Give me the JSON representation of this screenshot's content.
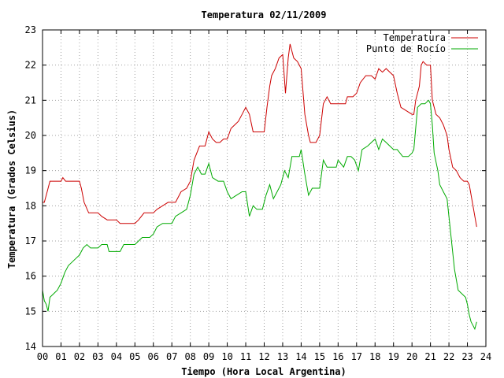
{
  "chart_data": {
    "type": "line",
    "title": "Temperatura 02/11/2009",
    "xlabel": "Tiempo (Hora Local Argentina)",
    "ylabel": "Temperatura (Grados Celsius)",
    "xlim": [
      0,
      24
    ],
    "ylim": [
      14,
      23
    ],
    "xticks": [
      "00",
      "01",
      "02",
      "03",
      "04",
      "05",
      "06",
      "07",
      "08",
      "09",
      "10",
      "11",
      "12",
      "13",
      "14",
      "15",
      "16",
      "17",
      "18",
      "19",
      "20",
      "21",
      "22",
      "23",
      "24"
    ],
    "yticks": [
      14,
      15,
      16,
      17,
      18,
      19,
      20,
      21,
      22,
      23
    ],
    "grid": true,
    "legend_position": "top-right",
    "series": [
      {
        "name": "Temperatura",
        "color": "#cc0000",
        "points": [
          [
            0.0,
            18.1
          ],
          [
            0.1,
            18.1
          ],
          [
            0.25,
            18.4
          ],
          [
            0.4,
            18.7
          ],
          [
            0.7,
            18.7
          ],
          [
            1.0,
            18.7
          ],
          [
            1.1,
            18.8
          ],
          [
            1.25,
            18.7
          ],
          [
            1.6,
            18.7
          ],
          [
            2.0,
            18.7
          ],
          [
            2.1,
            18.5
          ],
          [
            2.25,
            18.1
          ],
          [
            2.5,
            17.8
          ],
          [
            2.8,
            17.8
          ],
          [
            3.0,
            17.8
          ],
          [
            3.2,
            17.7
          ],
          [
            3.5,
            17.6
          ],
          [
            3.8,
            17.6
          ],
          [
            4.0,
            17.6
          ],
          [
            4.2,
            17.5
          ],
          [
            4.6,
            17.5
          ],
          [
            5.0,
            17.5
          ],
          [
            5.2,
            17.6
          ],
          [
            5.5,
            17.8
          ],
          [
            5.8,
            17.8
          ],
          [
            6.0,
            17.8
          ],
          [
            6.2,
            17.9
          ],
          [
            6.5,
            18.0
          ],
          [
            6.8,
            18.1
          ],
          [
            7.0,
            18.1
          ],
          [
            7.2,
            18.1
          ],
          [
            7.5,
            18.4
          ],
          [
            7.8,
            18.5
          ],
          [
            8.0,
            18.7
          ],
          [
            8.2,
            19.3
          ],
          [
            8.5,
            19.7
          ],
          [
            8.8,
            19.7
          ],
          [
            9.0,
            20.1
          ],
          [
            9.2,
            19.9
          ],
          [
            9.4,
            19.8
          ],
          [
            9.6,
            19.8
          ],
          [
            9.8,
            19.9
          ],
          [
            10.0,
            19.9
          ],
          [
            10.2,
            20.2
          ],
          [
            10.4,
            20.3
          ],
          [
            10.6,
            20.4
          ],
          [
            10.8,
            20.6
          ],
          [
            11.0,
            20.8
          ],
          [
            11.2,
            20.6
          ],
          [
            11.4,
            20.1
          ],
          [
            11.7,
            20.1
          ],
          [
            12.0,
            20.1
          ],
          [
            12.15,
            20.8
          ],
          [
            12.3,
            21.4
          ],
          [
            12.4,
            21.7
          ],
          [
            12.6,
            21.9
          ],
          [
            12.8,
            22.2
          ],
          [
            13.0,
            22.3
          ],
          [
            13.15,
            21.2
          ],
          [
            13.3,
            22.2
          ],
          [
            13.4,
            22.6
          ],
          [
            13.6,
            22.2
          ],
          [
            13.8,
            22.1
          ],
          [
            14.0,
            21.9
          ],
          [
            14.2,
            20.6
          ],
          [
            14.4,
            20.0
          ],
          [
            14.5,
            19.8
          ],
          [
            14.8,
            19.8
          ],
          [
            15.0,
            20.0
          ],
          [
            15.2,
            20.9
          ],
          [
            15.4,
            21.1
          ],
          [
            15.6,
            20.9
          ],
          [
            16.0,
            20.9
          ],
          [
            16.4,
            20.9
          ],
          [
            16.5,
            21.1
          ],
          [
            16.8,
            21.1
          ],
          [
            17.0,
            21.2
          ],
          [
            17.2,
            21.5
          ],
          [
            17.5,
            21.7
          ],
          [
            17.8,
            21.7
          ],
          [
            18.0,
            21.6
          ],
          [
            18.2,
            21.9
          ],
          [
            18.4,
            21.8
          ],
          [
            18.6,
            21.9
          ],
          [
            18.8,
            21.8
          ],
          [
            19.0,
            21.7
          ],
          [
            19.2,
            21.2
          ],
          [
            19.4,
            20.8
          ],
          [
            19.7,
            20.7
          ],
          [
            20.0,
            20.6
          ],
          [
            20.1,
            20.6
          ],
          [
            20.2,
            21.0
          ],
          [
            20.4,
            21.4
          ],
          [
            20.5,
            22.0
          ],
          [
            20.6,
            22.1
          ],
          [
            20.8,
            22.0
          ],
          [
            21.0,
            22.0
          ],
          [
            21.1,
            21.0
          ],
          [
            21.3,
            20.6
          ],
          [
            21.5,
            20.5
          ],
          [
            21.7,
            20.3
          ],
          [
            21.9,
            20.0
          ],
          [
            22.0,
            19.6
          ],
          [
            22.2,
            19.1
          ],
          [
            22.4,
            19.0
          ],
          [
            22.6,
            18.8
          ],
          [
            22.8,
            18.7
          ],
          [
            23.0,
            18.7
          ],
          [
            23.1,
            18.6
          ],
          [
            23.3,
            18.0
          ],
          [
            23.5,
            17.4
          ]
        ]
      },
      {
        "name": "Punto de Rocío",
        "color": "#00aa00",
        "points": [
          [
            0.0,
            15.6
          ],
          [
            0.1,
            15.3
          ],
          [
            0.2,
            15.2
          ],
          [
            0.3,
            15.0
          ],
          [
            0.4,
            15.4
          ],
          [
            0.6,
            15.5
          ],
          [
            0.8,
            15.6
          ],
          [
            1.0,
            15.8
          ],
          [
            1.2,
            16.1
          ],
          [
            1.4,
            16.3
          ],
          [
            1.6,
            16.4
          ],
          [
            1.8,
            16.5
          ],
          [
            2.0,
            16.6
          ],
          [
            2.2,
            16.8
          ],
          [
            2.4,
            16.9
          ],
          [
            2.6,
            16.8
          ],
          [
            3.0,
            16.8
          ],
          [
            3.2,
            16.9
          ],
          [
            3.5,
            16.9
          ],
          [
            3.6,
            16.7
          ],
          [
            4.0,
            16.7
          ],
          [
            4.2,
            16.7
          ],
          [
            4.4,
            16.9
          ],
          [
            4.8,
            16.9
          ],
          [
            5.0,
            16.9
          ],
          [
            5.2,
            17.0
          ],
          [
            5.4,
            17.1
          ],
          [
            5.8,
            17.1
          ],
          [
            6.0,
            17.2
          ],
          [
            6.2,
            17.4
          ],
          [
            6.5,
            17.5
          ],
          [
            6.8,
            17.5
          ],
          [
            7.0,
            17.5
          ],
          [
            7.2,
            17.7
          ],
          [
            7.5,
            17.8
          ],
          [
            7.8,
            17.9
          ],
          [
            8.0,
            18.3
          ],
          [
            8.2,
            18.9
          ],
          [
            8.4,
            19.1
          ],
          [
            8.6,
            18.9
          ],
          [
            8.8,
            18.9
          ],
          [
            9.0,
            19.2
          ],
          [
            9.2,
            18.8
          ],
          [
            9.5,
            18.7
          ],
          [
            9.8,
            18.7
          ],
          [
            10.0,
            18.4
          ],
          [
            10.2,
            18.2
          ],
          [
            10.5,
            18.3
          ],
          [
            10.8,
            18.4
          ],
          [
            11.0,
            18.4
          ],
          [
            11.2,
            17.7
          ],
          [
            11.4,
            18.0
          ],
          [
            11.6,
            17.9
          ],
          [
            11.9,
            17.9
          ],
          [
            12.1,
            18.3
          ],
          [
            12.3,
            18.6
          ],
          [
            12.5,
            18.2
          ],
          [
            12.7,
            18.4
          ],
          [
            12.9,
            18.6
          ],
          [
            13.1,
            19.0
          ],
          [
            13.3,
            18.8
          ],
          [
            13.5,
            19.4
          ],
          [
            13.7,
            19.4
          ],
          [
            13.9,
            19.4
          ],
          [
            14.0,
            19.6
          ],
          [
            14.2,
            18.9
          ],
          [
            14.4,
            18.3
          ],
          [
            14.6,
            18.5
          ],
          [
            15.0,
            18.5
          ],
          [
            15.2,
            19.3
          ],
          [
            15.4,
            19.1
          ],
          [
            15.6,
            19.1
          ],
          [
            15.9,
            19.1
          ],
          [
            16.0,
            19.3
          ],
          [
            16.3,
            19.1
          ],
          [
            16.5,
            19.4
          ],
          [
            16.7,
            19.4
          ],
          [
            16.9,
            19.3
          ],
          [
            17.1,
            19.0
          ],
          [
            17.3,
            19.6
          ],
          [
            17.6,
            19.7
          ],
          [
            17.8,
            19.8
          ],
          [
            18.0,
            19.9
          ],
          [
            18.2,
            19.6
          ],
          [
            18.4,
            19.9
          ],
          [
            18.6,
            19.8
          ],
          [
            18.8,
            19.7
          ],
          [
            19.0,
            19.6
          ],
          [
            19.2,
            19.6
          ],
          [
            19.5,
            19.4
          ],
          [
            19.8,
            19.4
          ],
          [
            20.0,
            19.5
          ],
          [
            20.1,
            19.6
          ],
          [
            20.3,
            20.8
          ],
          [
            20.5,
            20.9
          ],
          [
            20.7,
            20.9
          ],
          [
            20.9,
            21.0
          ],
          [
            21.0,
            20.9
          ],
          [
            21.1,
            20.3
          ],
          [
            21.2,
            19.5
          ],
          [
            21.4,
            19.0
          ],
          [
            21.5,
            18.6
          ],
          [
            21.7,
            18.4
          ],
          [
            21.9,
            18.2
          ],
          [
            22.1,
            17.2
          ],
          [
            22.3,
            16.2
          ],
          [
            22.5,
            15.6
          ],
          [
            22.7,
            15.5
          ],
          [
            22.9,
            15.4
          ],
          [
            23.0,
            15.2
          ],
          [
            23.1,
            14.9
          ],
          [
            23.2,
            14.7
          ],
          [
            23.3,
            14.6
          ],
          [
            23.4,
            14.5
          ],
          [
            23.5,
            14.7
          ]
        ]
      }
    ]
  }
}
